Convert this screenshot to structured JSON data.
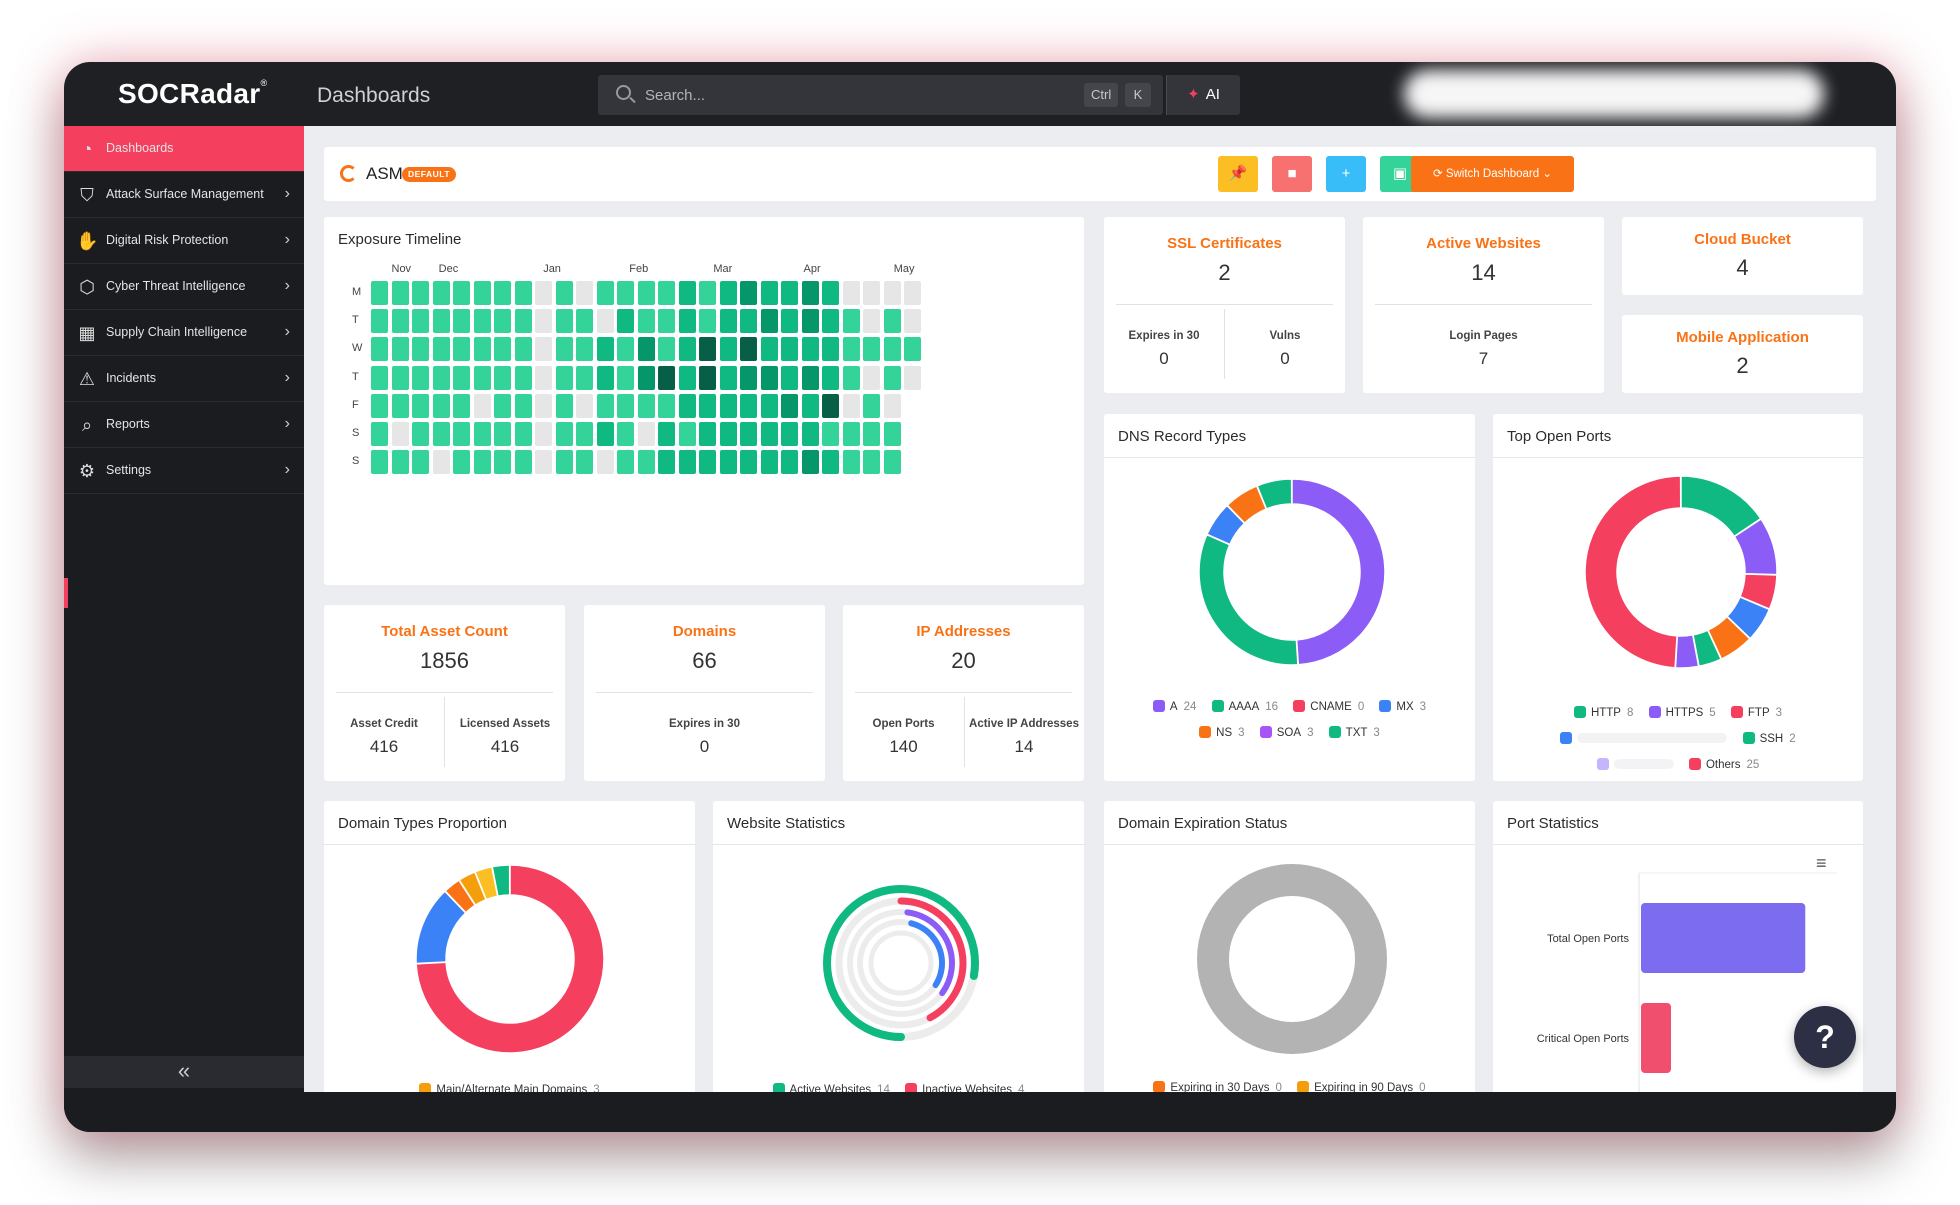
{
  "app": {
    "brand": "SOCRadar",
    "brand_mark": "®",
    "page_title": "Dashboards",
    "search_placeholder": "Search...",
    "shortcut_ctrl": "Ctrl",
    "shortcut_key": "K",
    "ai_label": "AI"
  },
  "sidebar": {
    "items": [
      {
        "label": "Dashboards",
        "icon": "dashboard-icon",
        "active": true
      },
      {
        "label": "Attack Surface Management",
        "icon": "attack-surface-icon"
      },
      {
        "label": "Digital Risk Protection",
        "icon": "hand-icon"
      },
      {
        "label": "Cyber Threat Intelligence",
        "icon": "shield-icon"
      },
      {
        "label": "Supply Chain Intelligence",
        "icon": "supply-chain-icon"
      },
      {
        "label": "Incidents",
        "icon": "alert-icon"
      },
      {
        "label": "Reports",
        "icon": "report-icon"
      },
      {
        "label": "Settings",
        "icon": "gear-icon"
      }
    ],
    "collapse_glyph": "«"
  },
  "header": {
    "title": "ASM",
    "badge": "DEFAULT",
    "switch_label": "Switch Dashboard",
    "buttons": [
      {
        "icon": "pin-icon",
        "color": "#fbbf24"
      },
      {
        "icon": "delete-icon",
        "color": "#f87171"
      },
      {
        "icon": "add-icon",
        "color": "#38bdf8"
      },
      {
        "icon": "save-icon",
        "color": "#34d399"
      }
    ]
  },
  "exposure_timeline": {
    "title": "Exposure Timeline",
    "months": [
      "Nov",
      "Dec",
      "Jan",
      "Feb",
      "Mar",
      "Apr",
      "May"
    ],
    "days": [
      "M",
      "T",
      "W",
      "T",
      "F",
      "S",
      "S"
    ],
    "levels": [
      [
        2,
        2,
        2,
        2,
        2,
        2,
        2,
        2,
        0,
        2,
        0,
        2,
        2,
        2,
        2,
        3,
        2,
        3,
        4,
        3,
        3,
        4,
        3,
        0,
        0,
        0,
        0
      ],
      [
        2,
        2,
        2,
        2,
        2,
        2,
        2,
        2,
        0,
        2,
        2,
        0,
        3,
        2,
        2,
        3,
        2,
        3,
        3,
        4,
        3,
        4,
        3,
        2,
        0,
        2,
        0
      ],
      [
        2,
        2,
        2,
        2,
        2,
        2,
        2,
        2,
        0,
        2,
        2,
        3,
        2,
        4,
        2,
        3,
        5,
        3,
        5,
        3,
        3,
        3,
        3,
        2,
        2,
        2,
        2
      ],
      [
        2,
        2,
        2,
        2,
        2,
        2,
        2,
        2,
        0,
        2,
        2,
        3,
        2,
        4,
        5,
        3,
        5,
        3,
        4,
        4,
        3,
        4,
        3,
        2,
        0,
        2,
        0
      ],
      [
        2,
        2,
        2,
        2,
        2,
        0,
        2,
        2,
        0,
        2,
        0,
        2,
        2,
        2,
        2,
        3,
        3,
        3,
        3,
        3,
        4,
        3,
        5,
        0,
        2,
        0,
        -1
      ],
      [
        2,
        0,
        2,
        2,
        2,
        2,
        2,
        2,
        0,
        2,
        2,
        3,
        2,
        0,
        3,
        2,
        3,
        3,
        3,
        3,
        3,
        3,
        2,
        2,
        2,
        2,
        -1
      ],
      [
        2,
        2,
        2,
        0,
        2,
        2,
        2,
        2,
        0,
        2,
        2,
        0,
        2,
        2,
        3,
        3,
        3,
        3,
        3,
        3,
        3,
        4,
        3,
        2,
        2,
        2,
        -1
      ]
    ]
  },
  "stats": {
    "ssl": {
      "title": "SSL Certificates",
      "value": "2",
      "sub": [
        {
          "label": "Expires in 30",
          "value": "0"
        },
        {
          "label": "Vulns",
          "value": "0"
        }
      ]
    },
    "active_websites": {
      "title": "Active Websites",
      "value": "14",
      "sub": [
        {
          "label": "Login Pages",
          "value": "7"
        }
      ]
    },
    "cloud_bucket": {
      "title": "Cloud Bucket",
      "value": "4"
    },
    "mobile_app": {
      "title": "Mobile Application",
      "value": "2"
    },
    "total_assets": {
      "title": "Total Asset Count",
      "value": "1856",
      "sub": [
        {
          "label": "Asset Credit",
          "value": "416"
        },
        {
          "label": "Licensed Assets",
          "value": "416"
        }
      ]
    },
    "domains": {
      "title": "Domains",
      "value": "66",
      "sub": [
        {
          "label": "Expires in 30",
          "value": "0"
        }
      ]
    },
    "ip_addresses": {
      "title": "IP Addresses",
      "value": "20",
      "sub": [
        {
          "label": "Open Ports",
          "value": "140"
        },
        {
          "label": "Active IP Addresses",
          "value": "14"
        }
      ]
    }
  },
  "dns_record_types": {
    "title": "DNS Record Types",
    "chart_data": {
      "type": "pie",
      "categories": [
        "A",
        "AAAA",
        "CNAME",
        "MX",
        "NS",
        "SOA",
        "TXT"
      ],
      "values": [
        24,
        16,
        0,
        3,
        3,
        3,
        3
      ],
      "colors": [
        "#8b5cf6",
        "#10b981",
        "#f43f5e",
        "#3b82f6",
        "#f97316",
        "#a855f7",
        "#10b981"
      ]
    }
  },
  "top_open_ports": {
    "title": "Top Open Ports",
    "chart_data": {
      "type": "pie",
      "categories": [
        "HTTP",
        "HTTPS",
        "FTP",
        "SSH",
        "Others"
      ],
      "values": [
        8,
        5,
        3,
        2,
        25
      ],
      "colors": [
        "#10b981",
        "#8b5cf6",
        "#f43f5e",
        "#10b981",
        "#f43f5e"
      ]
    },
    "ring_segments": [
      8,
      5,
      3,
      3,
      3,
      2,
      2,
      25
    ],
    "ring_colors": [
      "#10b981",
      "#8b5cf6",
      "#f43f5e",
      "#3b82f6",
      "#f97316",
      "#10b981",
      "#8b5cf6",
      "#f43f5e"
    ]
  },
  "domain_types": {
    "title": "Domain Types Proportion",
    "legend": [
      {
        "label": "Main/Alternate Main Domains",
        "value": "3",
        "color": "#f59e0b"
      }
    ],
    "ring_segments": [
      49,
      9,
      2,
      2,
      2,
      2
    ],
    "ring_colors": [
      "#f43f5e",
      "#3b82f6",
      "#f97316",
      "#f59e0b",
      "#fbbf24",
      "#10b981"
    ]
  },
  "website_statistics": {
    "title": "Website Statistics",
    "chart_data": {
      "type": "pie",
      "categories": [
        "Active Websites",
        "Inactive Websites"
      ],
      "values": [
        14,
        4
      ],
      "colors": [
        "#10b981",
        "#f43f5e"
      ]
    }
  },
  "domain_expiration": {
    "title": "Domain Expiration Status",
    "chart_data": {
      "type": "pie",
      "categories": [
        "Expiring in 30 Days",
        "Expiring in 90 Days"
      ],
      "values": [
        0,
        0
      ],
      "colors": [
        "#f97316",
        "#f59e0b"
      ]
    }
  },
  "port_statistics": {
    "title": "Port Statistics",
    "menu_icon": "hamburger-icon",
    "chart_data": {
      "type": "bar",
      "categories": [
        "Total Open Ports",
        "Critical Open Ports"
      ],
      "series": [
        {
          "values": [
            140,
            11
          ]
        }
      ],
      "colors": [
        "#7c6cf0",
        "#f0506e"
      ]
    }
  }
}
